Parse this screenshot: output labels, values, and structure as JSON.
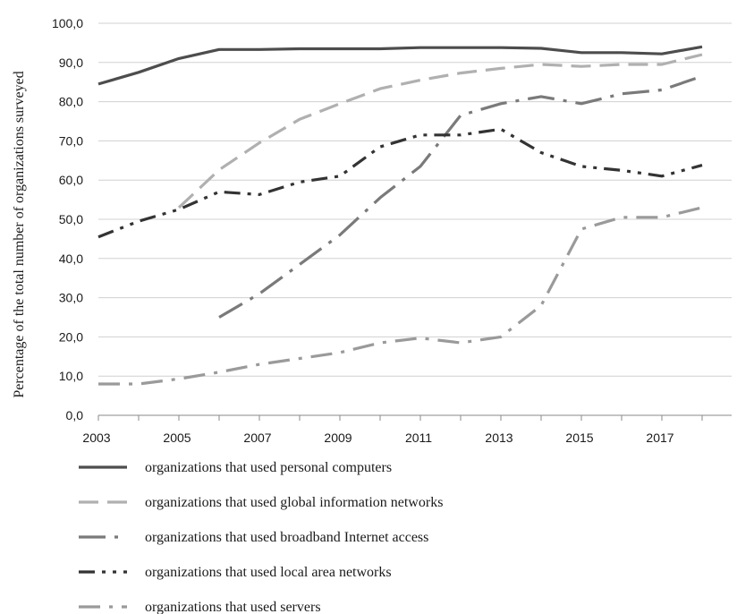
{
  "chart_data": {
    "type": "line",
    "title": "",
    "xlabel": "",
    "ylabel": "Percentage of the total number of organizations surveyed",
    "x": [
      2003,
      2004,
      2005,
      2006,
      2007,
      2008,
      2009,
      2010,
      2011,
      2012,
      2013,
      2014,
      2015,
      2016,
      2017,
      2018
    ],
    "x_ticks": [
      "2003",
      "2005",
      "2007",
      "2009",
      "2011",
      "2013",
      "2015",
      "2017"
    ],
    "y_ticks": [
      "0,0",
      "10,0",
      "20,0",
      "30,0",
      "40,0",
      "50,0",
      "60,0",
      "70,0",
      "80,0",
      "90,0",
      "100,0"
    ],
    "ylim": [
      0,
      100
    ],
    "grid": "horizontal",
    "legend_position": "bottom",
    "series": [
      {
        "name": "organizations that used personal computers",
        "color": "#4d4d4d",
        "dash": "solid",
        "values": [
          84.5,
          87.5,
          91.0,
          93.3,
          93.3,
          93.5,
          93.5,
          93.5,
          93.8,
          93.8,
          93.8,
          93.6,
          92.5,
          92.5,
          92.2,
          94.0
        ]
      },
      {
        "name": "organizations that used global information networks",
        "color": "#b0b0b0",
        "dash": "dash",
        "values": [
          null,
          null,
          53.0,
          62.6,
          69.5,
          75.5,
          79.5,
          83.3,
          85.5,
          87.3,
          88.5,
          89.5,
          89.0,
          89.5,
          89.5,
          92.0
        ]
      },
      {
        "name": "organizations that used broadband Internet access",
        "color": "#7a7a7a",
        "dash": "longdash-dot",
        "values": [
          null,
          null,
          null,
          25.0,
          31.0,
          38.5,
          46.0,
          55.5,
          63.5,
          76.5,
          79.5,
          81.3,
          79.5,
          82.0,
          83.0,
          86.5
        ]
      },
      {
        "name": "organizations that used local area networks",
        "color": "#333333",
        "dash": "dash-dot-dot",
        "values": [
          45.5,
          49.5,
          52.5,
          57.0,
          56.3,
          59.5,
          61.0,
          68.5,
          71.5,
          71.5,
          73.0,
          67.0,
          63.5,
          62.5,
          61.0,
          63.8
        ]
      },
      {
        "name": "organizations that used servers",
        "color": "#9a9a9a",
        "dash": "dash-dot",
        "values": [
          8.0,
          8.0,
          9.3,
          11.0,
          13.0,
          14.5,
          16.0,
          18.5,
          19.7,
          18.5,
          20.0,
          28.0,
          47.5,
          50.5,
          50.5,
          53.0
        ]
      }
    ]
  }
}
